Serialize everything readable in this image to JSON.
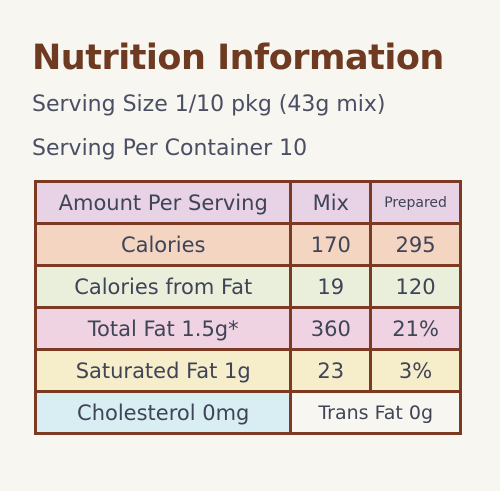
{
  "header": {
    "title": "Nutrition Information",
    "serving_size": "Serving Size 1/10 pkg (43g mix)",
    "servings_per_container": "Serving Per Container 10"
  },
  "table": {
    "columns": [
      "Amount Per Serving",
      "Mix",
      "Prepared"
    ],
    "rows": [
      [
        "Calories",
        "170",
        "295"
      ],
      [
        "Calories from Fat",
        "19",
        "120"
      ],
      [
        "Total Fat 1.5g*",
        "360",
        "21%"
      ],
      [
        "Saturated Fat 1g",
        "23",
        "3%"
      ]
    ],
    "footer": [
      "Cholesterol 0mg",
      "Trans Fat 0g"
    ]
  }
}
